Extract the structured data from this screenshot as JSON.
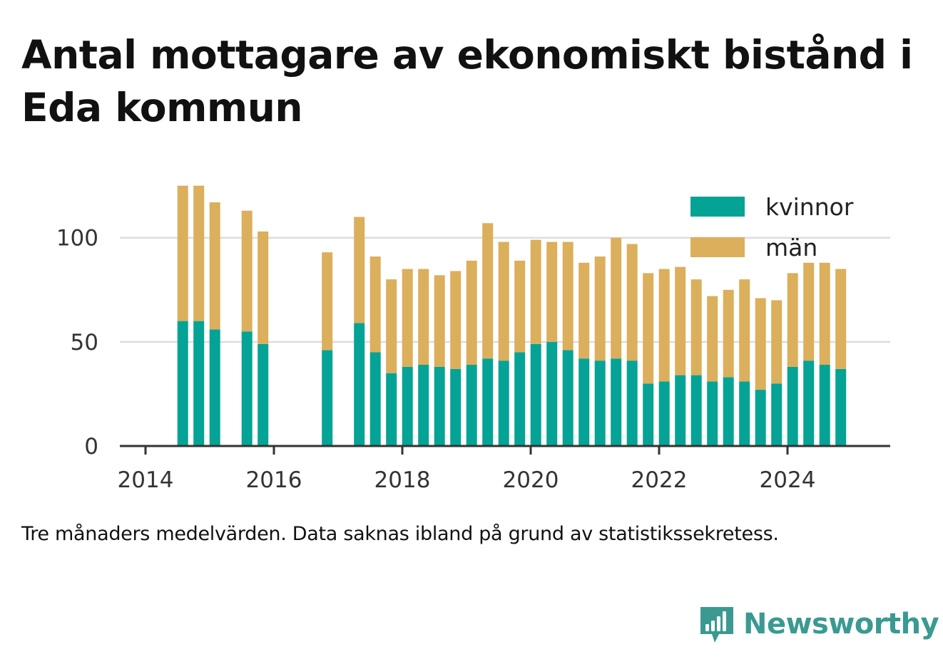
{
  "title": "Antal mottagare av ekonomiskt bistånd i Eda kommun",
  "note": "Tre månaders medelvärden. Data saknas ibland på grund av statistikssekretess.",
  "brand": {
    "name": "Newsworthy",
    "icon": "bar-chart-speech-bubble-icon"
  },
  "colors": {
    "kvinnor": "#04a396",
    "man": "#dbaf5b",
    "grid": "#dddddd",
    "axis": "#333333",
    "brand": "#3a9a91"
  },
  "chart_data": {
    "type": "bar",
    "stacked": true,
    "title": "Antal mottagare av ekonomiskt bistånd i Eda kommun",
    "xlabel": "",
    "ylabel": "",
    "xlim": [
      2013.6,
      2025.6
    ],
    "ylim": [
      0,
      130
    ],
    "xticks": [
      "2014",
      "2016",
      "2018",
      "2020",
      "2022",
      "2024"
    ],
    "yticks": [
      "0",
      "50",
      "100"
    ],
    "grid": true,
    "legend_position": "top-right",
    "x": [
      2014.58,
      2014.83,
      2015.08,
      2015.58,
      2015.83,
      2016.83,
      2017.33,
      2017.58,
      2017.83,
      2018.08,
      2018.33,
      2018.58,
      2018.83,
      2019.08,
      2019.33,
      2019.58,
      2019.83,
      2020.08,
      2020.33,
      2020.58,
      2020.83,
      2021.08,
      2021.33,
      2021.58,
      2021.83,
      2022.08,
      2022.33,
      2022.58,
      2022.83,
      2023.08,
      2023.33,
      2023.58,
      2023.83,
      2024.08,
      2024.33,
      2024.58,
      2024.83
    ],
    "series": [
      {
        "name": "kvinnor",
        "values": [
          60,
          60,
          56,
          55,
          49,
          46,
          59,
          45,
          35,
          38,
          39,
          38,
          37,
          39,
          42,
          41,
          45,
          49,
          50,
          46,
          42,
          41,
          42,
          41,
          30,
          31,
          34,
          34,
          31,
          33,
          31,
          27,
          30,
          38,
          41,
          39,
          37
        ]
      },
      {
        "name": "män",
        "values": [
          65,
          65,
          61,
          58,
          54,
          47,
          51,
          46,
          45,
          47,
          46,
          44,
          47,
          50,
          65,
          57,
          44,
          50,
          48,
          52,
          46,
          50,
          58,
          56,
          53,
          54,
          52,
          46,
          41,
          42,
          49,
          44,
          40,
          45,
          47,
          49,
          48
        ]
      }
    ]
  }
}
